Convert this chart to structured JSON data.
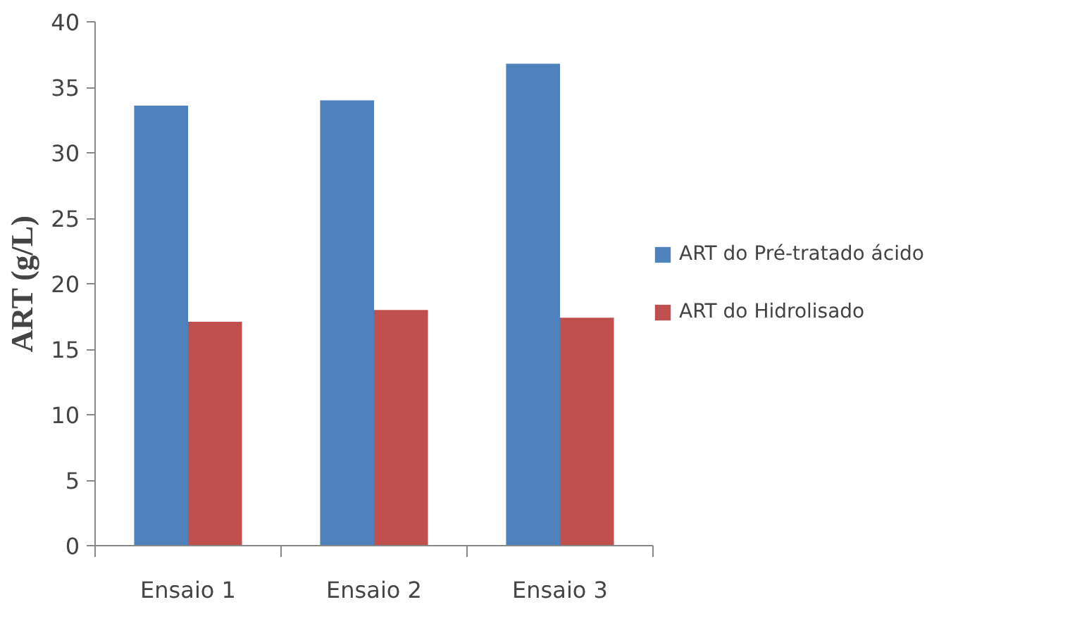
{
  "chart_data": {
    "type": "bar",
    "ylabel": "ART (g/L)",
    "categories": [
      "Ensaio 1",
      "Ensaio 2",
      "Ensaio 3"
    ],
    "series": [
      {
        "name": "ART do Pré-tratado ácido",
        "color": "#4f81bd",
        "values": [
          33.6,
          34.0,
          36.8
        ]
      },
      {
        "name": "ART do Hidrolisado",
        "color": "#c0504d",
        "values": [
          17.1,
          18.0,
          17.4
        ]
      }
    ],
    "ylim": [
      0,
      40
    ],
    "yticks": [
      0,
      5,
      10,
      15,
      20,
      25,
      30,
      35,
      40
    ],
    "grid": false,
    "legend": "right"
  }
}
